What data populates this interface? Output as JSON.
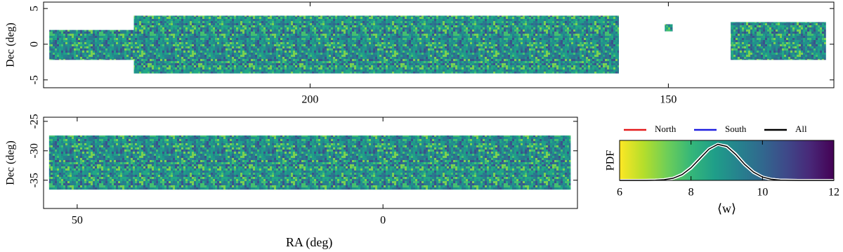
{
  "chart_data": [
    {
      "type": "map",
      "ylabel": "Dec (deg)",
      "xlim": [
        237.2,
        126.9
      ],
      "ylim": [
        -6.1,
        5.9
      ],
      "xticks": [
        200,
        150
      ],
      "yticks": [
        -5,
        0,
        5
      ],
      "regions": [
        {
          "ra": [
            236.4,
            224.6
          ],
          "dec": [
            -2.2,
            2.0
          ]
        },
        {
          "ra": [
            224.6,
            156.9
          ],
          "dec": [
            -4.1,
            4.0
          ]
        },
        {
          "ra": [
            150.5,
            149.4
          ],
          "dec": [
            1.8,
            2.8
          ]
        },
        {
          "ra": [
            141.3,
            128.0
          ],
          "dec": [
            -2.2,
            3.1
          ]
        }
      ]
    },
    {
      "type": "map",
      "xlabel": "RA (deg)",
      "ylabel": "Dec (deg)",
      "xlim": [
        55.5,
        -31.8
      ],
      "ylim": [
        -39.8,
        -24.3
      ],
      "xticks": [
        50,
        0
      ],
      "yticks": [
        -25,
        -30,
        -35
      ],
      "regions": [
        {
          "ra": [
            54.6,
            -30.7
          ],
          "dec": [
            -36.6,
            -27.4
          ]
        }
      ]
    },
    {
      "type": "line",
      "xlabel": "⟨w⟩",
      "ylabel": "PDF",
      "colormap": "viridis",
      "xlim": [
        6,
        12
      ],
      "ylim": [
        0,
        0.8
      ],
      "xticks": [
        6,
        8,
        10,
        12
      ],
      "legend": "top",
      "x": [
        6,
        6.25,
        6.5,
        6.75,
        7,
        7.25,
        7.5,
        7.75,
        8,
        8.25,
        8.5,
        8.75,
        9,
        9.25,
        9.5,
        9.75,
        10,
        10.25,
        10.5,
        10.75,
        11,
        11.25,
        11.5,
        11.75,
        12
      ],
      "series": [
        {
          "name": "North",
          "color": "#e41a1c",
          "values": [
            0,
            0,
            0.0001,
            0.0006,
            0.003,
            0.013,
            0.041,
            0.111,
            0.243,
            0.43,
            0.618,
            0.722,
            0.686,
            0.53,
            0.33,
            0.17,
            0.07,
            0.023,
            0.006,
            0.0014,
            0.0002,
            0,
            0,
            0,
            0
          ]
        },
        {
          "name": "South",
          "color": "#1f1fe0",
          "values": [
            0,
            0,
            0.0001,
            0.0008,
            0.0038,
            0.015,
            0.047,
            0.123,
            0.262,
            0.45,
            0.632,
            0.722,
            0.672,
            0.512,
            0.314,
            0.158,
            0.064,
            0.021,
            0.0055,
            0.0012,
            0.0002,
            0,
            0,
            0,
            0
          ]
        },
        {
          "name": "All",
          "color": "#000000",
          "values": [
            0,
            0,
            0.0001,
            0.0007,
            0.0034,
            0.014,
            0.044,
            0.117,
            0.252,
            0.44,
            0.625,
            0.722,
            0.679,
            0.521,
            0.322,
            0.164,
            0.067,
            0.022,
            0.006,
            0.0013,
            0.0002,
            0,
            0,
            0,
            0
          ]
        }
      ]
    }
  ]
}
